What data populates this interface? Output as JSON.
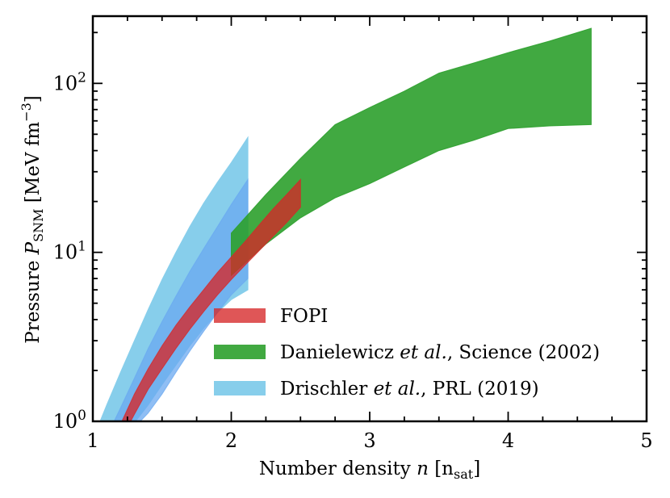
{
  "chart_data": {
    "type": "area",
    "xlim": [
      1,
      5
    ],
    "ylim": [
      1,
      250
    ],
    "yscale": "log",
    "grid": false,
    "legend_position": "lower-right",
    "xlabel": {
      "prefix": "Number density ",
      "var": "n",
      "unit": "[n",
      "unit_sub": "sat",
      "unit_close": "]"
    },
    "ylabel": {
      "prefix": "Pressure ",
      "var": "P",
      "var_sub": "SNM",
      "unit": " [MeV fm",
      "unit_sup": "−3",
      "unit_close": "]"
    },
    "xticks": [
      {
        "value": 1,
        "label": "1"
      },
      {
        "value": 2,
        "label": "2"
      },
      {
        "value": 3,
        "label": "3"
      },
      {
        "value": 4,
        "label": "4"
      },
      {
        "value": 5,
        "label": "5"
      }
    ],
    "yticks": [
      {
        "value": 1,
        "base": "10",
        "exp": "0"
      },
      {
        "value": 10,
        "base": "10",
        "exp": "1"
      },
      {
        "value": 100,
        "base": "10",
        "exp": "2"
      }
    ],
    "series": [
      {
        "name": "Drischler et al., PRL (2019) 2σ",
        "color": "#87ceeb",
        "opacity": 1.0,
        "x": [
          1.03,
          1.1,
          1.2,
          1.3,
          1.4,
          1.5,
          1.6,
          1.7,
          1.8,
          1.9,
          2.0,
          2.12
        ],
        "lower": [
          0.5,
          0.62,
          0.78,
          0.98,
          1.25,
          1.65,
          2.15,
          2.8,
          3.55,
          4.4,
          5.25,
          6.0
        ],
        "upper": [
          0.9,
          1.25,
          1.95,
          3.0,
          4.6,
          6.9,
          10.0,
          14.2,
          19.5,
          26.0,
          34.0,
          48.0
        ]
      },
      {
        "name": "Drischler et al., PRL (2019) 1σ",
        "color": "#6aa8f0",
        "opacity": 0.75,
        "x": [
          1.14,
          1.2,
          1.3,
          1.4,
          1.5,
          1.6,
          1.7,
          1.8,
          1.9,
          2.0,
          2.12
        ],
        "lower": [
          0.7,
          0.78,
          0.92,
          1.12,
          1.45,
          1.95,
          2.6,
          3.4,
          4.4,
          5.6,
          7.0
        ],
        "upper": [
          0.95,
          1.2,
          1.8,
          2.7,
          3.9,
          5.5,
          7.7,
          10.5,
          14.2,
          19.2,
          27.0
        ]
      },
      {
        "name": "Danielewicz et al., Science (2002)",
        "color": "#2ca02c",
        "opacity": 0.9,
        "x": [
          2.0,
          2.25,
          2.5,
          2.75,
          3.0,
          3.25,
          3.5,
          3.75,
          4.0,
          4.3,
          4.6
        ],
        "lower": [
          7.3,
          11.2,
          16.0,
          21.0,
          25.5,
          32.0,
          40.0,
          46.0,
          54.0,
          56.0,
          57.0
        ],
        "upper": [
          13.0,
          22.0,
          36.0,
          57.0,
          72.0,
          90.0,
          115.0,
          132.0,
          152.0,
          178.0,
          212.0
        ]
      },
      {
        "name": "FOPI",
        "color": "#d62728",
        "opacity": 0.78,
        "x": [
          1.21,
          1.3,
          1.4,
          1.5,
          1.6,
          1.7,
          1.8,
          1.9,
          2.0,
          2.1,
          2.2,
          2.3,
          2.4,
          2.5
        ],
        "lower": [
          0.8,
          1.1,
          1.55,
          2.05,
          2.7,
          3.5,
          4.45,
          5.6,
          6.9,
          8.4,
          10.2,
          12.4,
          15.0,
          18.5
        ],
        "upper": [
          1.0,
          1.45,
          2.05,
          2.8,
          3.7,
          4.75,
          6.0,
          7.6,
          9.4,
          11.6,
          14.5,
          18.0,
          22.0,
          27.0
        ]
      }
    ],
    "legend": [
      {
        "label": "FOPI",
        "color": "#d62728",
        "opacity": 0.78,
        "segments": [
          {
            "text": "FOPI",
            "italic": false
          }
        ]
      },
      {
        "label": "Danielewicz et al., Science (2002)",
        "color": "#2ca02c",
        "opacity": 0.9,
        "segments": [
          {
            "text": "Danielewicz ",
            "italic": false
          },
          {
            "text": "et al.",
            "italic": true
          },
          {
            "text": ", Science (2002)",
            "italic": false
          }
        ]
      },
      {
        "label": "Drischler et al., PRL (2019)",
        "color": "#87ceeb",
        "opacity": 1.0,
        "segments": [
          {
            "text": "Drischler ",
            "italic": false
          },
          {
            "text": "et al.",
            "italic": true
          },
          {
            "text": ", PRL (2019)",
            "italic": false
          }
        ]
      }
    ]
  }
}
